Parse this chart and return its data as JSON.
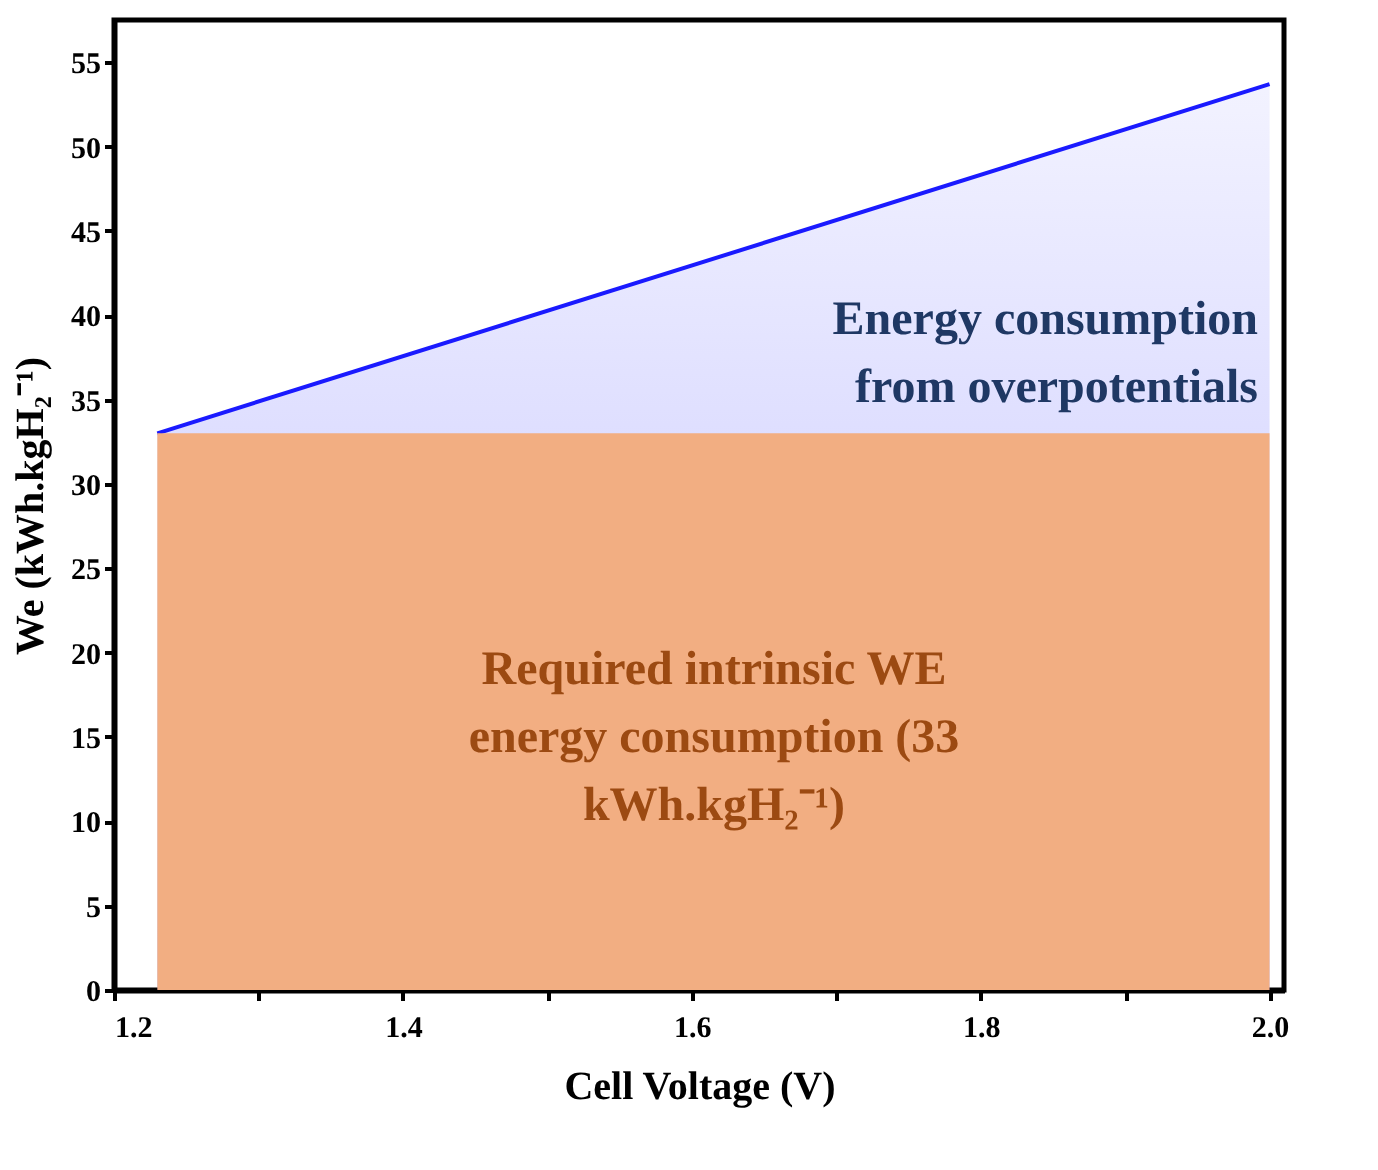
{
  "chart_data": {
    "type": "area",
    "xlabel": "Cell Voltage (V)",
    "ylabel": "We (kWh.kgH₂⁻¹)",
    "x": [
      1.23,
      2.0
    ],
    "series": [
      {
        "color": "#1a1aff",
        "values": [
          33,
          53.7
        ]
      },
      {
        "color": "#f2ae82",
        "values": [
          33,
          33
        ]
      }
    ],
    "xlim": [
      1.2,
      2.01
    ],
    "xticks": [
      1.2,
      {
        "value": 1.3,
        "label": null
      },
      1.4,
      {
        "value": 1.5,
        "label": null
      },
      1.6,
      {
        "value": 1.7,
        "label": null
      },
      1.8,
      {
        "value": 1.9,
        "label": null
      },
      {
        "value": 2.0,
        "label": "2.0"
      }
    ],
    "ylim": [
      0,
      57.5
    ],
    "yticks": [
      0,
      5,
      10,
      15,
      20,
      25,
      30,
      35,
      40,
      45,
      50,
      55
    ],
    "annotations": [
      "Energy consumption\nfrom overpotentials",
      "Required intrinsic WE\nenergy consumption (33\nkWh.kgH₂⁻¹)"
    ],
    "grid": false,
    "marker": "none"
  }
}
